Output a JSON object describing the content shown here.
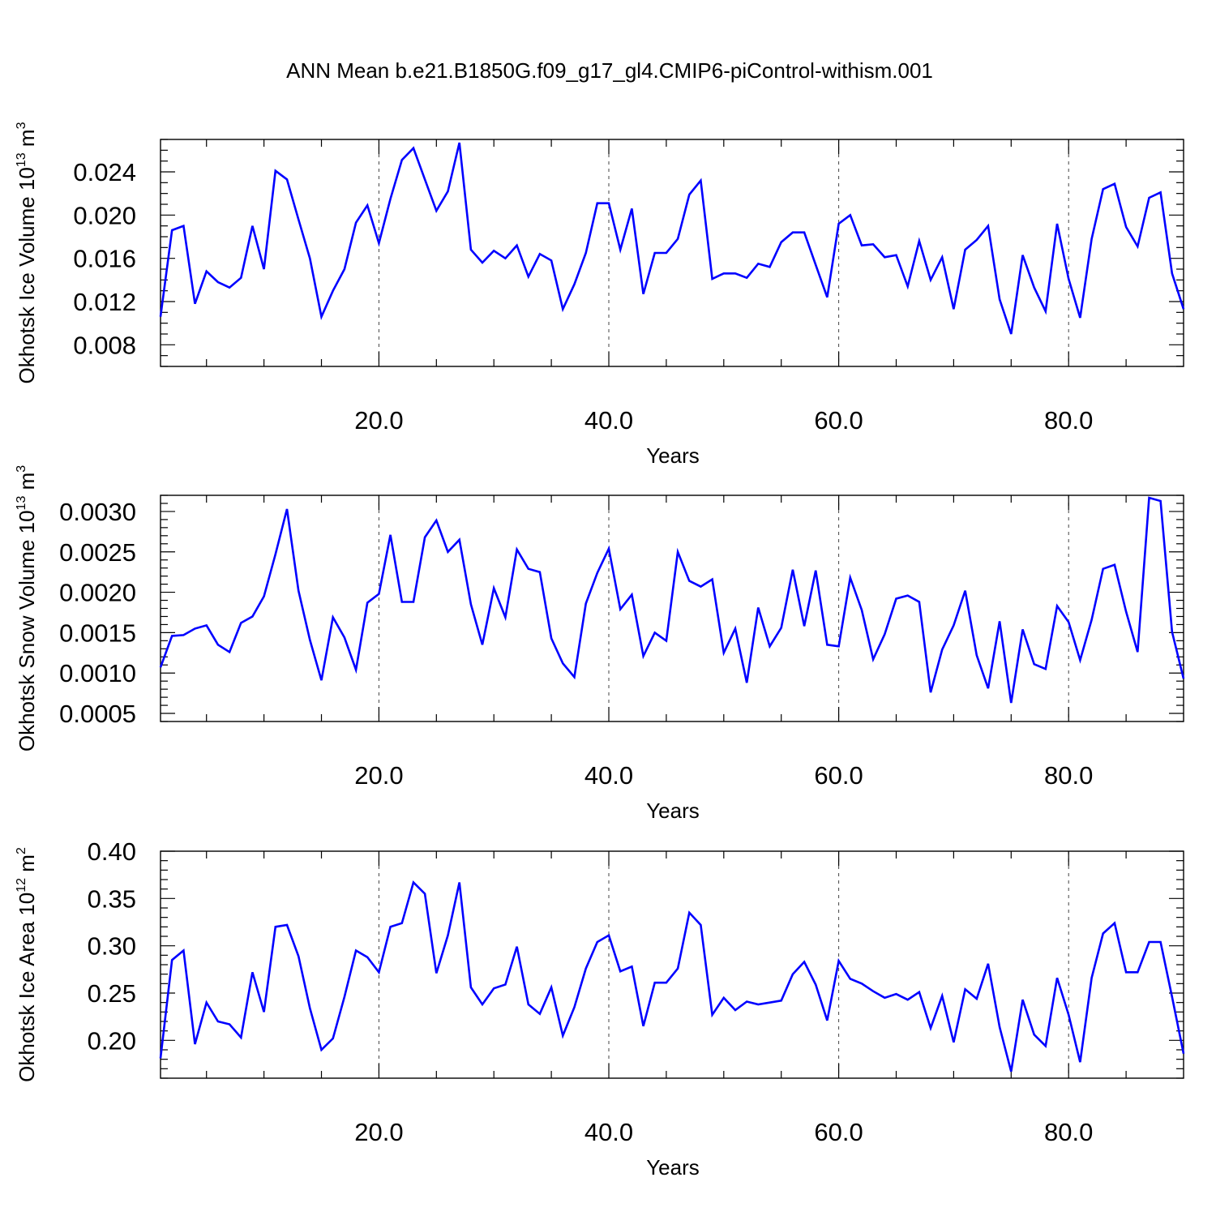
{
  "title": "ANN Mean b.e21.B1850G.f09_g17_gl4.CMIP6-piControl-withism.001",
  "line_color": "#0000ff",
  "chart_data": [
    {
      "type": "line",
      "xlabel": "Years",
      "ylabel": "Okhotsk Ice Volume 10",
      "ylabel_sup": "13",
      "ylabel_unit": "m",
      "ylabel_unit_sup": "3",
      "xlim": [
        1,
        90
      ],
      "ylim": [
        0.006,
        0.027
      ],
      "xticks": [
        20,
        40,
        60,
        80
      ],
      "xtick_labels": [
        "20.0",
        "40.0",
        "60.0",
        "80.0"
      ],
      "yticks": [
        0.008,
        0.012,
        0.016,
        0.02,
        0.024
      ],
      "ytick_labels": [
        "0.008",
        "0.012",
        "0.016",
        "0.020",
        "0.024"
      ],
      "ytick_minor": 0.001,
      "grid": "x-dashed",
      "series": [
        {
          "x": [
            1,
            2,
            3,
            4,
            5,
            6,
            7,
            8,
            9,
            10,
            11,
            12,
            13,
            14,
            15,
            16,
            17,
            18,
            19,
            20,
            21,
            22,
            23,
            24,
            25,
            26,
            27,
            28,
            29,
            30,
            31,
            32,
            33,
            34,
            35,
            36,
            37,
            38,
            39,
            40,
            41,
            42,
            43,
            44,
            45,
            46,
            47,
            48,
            49,
            50,
            51,
            52,
            53,
            54,
            55,
            56,
            57,
            58,
            59,
            60,
            61,
            62,
            63,
            64,
            65,
            66,
            67,
            68,
            69,
            70,
            71,
            72,
            73,
            74,
            75,
            76,
            77,
            78,
            79,
            80,
            81,
            82,
            83,
            84,
            85,
            86,
            87,
            88,
            89,
            90
          ],
          "values": [
            0.0106,
            0.0186,
            0.019,
            0.0118,
            0.0148,
            0.0138,
            0.0133,
            0.0142,
            0.019,
            0.015,
            0.0241,
            0.0233,
            0.0196,
            0.016,
            0.0106,
            0.013,
            0.015,
            0.0193,
            0.0209,
            0.0174,
            0.0215,
            0.0251,
            0.0262,
            0.0233,
            0.0204,
            0.0222,
            0.0267,
            0.0168,
            0.0156,
            0.0167,
            0.016,
            0.0172,
            0.0143,
            0.0164,
            0.0158,
            0.0113,
            0.0136,
            0.0165,
            0.0211,
            0.0211,
            0.0168,
            0.0206,
            0.0127,
            0.0165,
            0.0165,
            0.0178,
            0.0219,
            0.0232,
            0.0141,
            0.0146,
            0.0146,
            0.0142,
            0.0155,
            0.0152,
            0.0175,
            0.0184,
            0.0184,
            0.0154,
            0.0124,
            0.0192,
            0.02,
            0.0172,
            0.0173,
            0.0161,
            0.0163,
            0.0134,
            0.0176,
            0.014,
            0.0161,
            0.0113,
            0.0168,
            0.0177,
            0.019,
            0.0122,
            0.009,
            0.0163,
            0.0133,
            0.0111,
            0.0192,
            0.0141,
            0.0105,
            0.0178,
            0.0224,
            0.0229,
            0.0189,
            0.0171,
            0.0216,
            0.0221,
            0.0146,
            0.0113
          ]
        }
      ]
    },
    {
      "type": "line",
      "xlabel": "Years",
      "ylabel": "Okhotsk Snow Volume 10",
      "ylabel_sup": "13",
      "ylabel_unit": "m",
      "ylabel_unit_sup": "3",
      "xlim": [
        1,
        90
      ],
      "ylim": [
        0.0004,
        0.0032
      ],
      "xticks": [
        20,
        40,
        60,
        80
      ],
      "xtick_labels": [
        "20.0",
        "40.0",
        "60.0",
        "80.0"
      ],
      "yticks": [
        0.0005,
        0.001,
        0.0015,
        0.002,
        0.0025,
        0.003
      ],
      "ytick_labels": [
        "0.0005",
        "0.0010",
        "0.0015",
        "0.0020",
        "0.0025",
        "0.0030"
      ],
      "ytick_minor": 0.0001,
      "grid": "x-dashed",
      "series": [
        {
          "x": [
            1,
            2,
            3,
            4,
            5,
            6,
            7,
            8,
            9,
            10,
            11,
            12,
            13,
            14,
            15,
            16,
            17,
            18,
            19,
            20,
            21,
            22,
            23,
            24,
            25,
            26,
            27,
            28,
            29,
            30,
            31,
            32,
            33,
            34,
            35,
            36,
            37,
            38,
            39,
            40,
            41,
            42,
            43,
            44,
            45,
            46,
            47,
            48,
            49,
            50,
            51,
            52,
            53,
            54,
            55,
            56,
            57,
            58,
            59,
            60,
            61,
            62,
            63,
            64,
            65,
            66,
            67,
            68,
            69,
            70,
            71,
            72,
            73,
            74,
            75,
            76,
            77,
            78,
            79,
            80,
            81,
            82,
            83,
            84,
            85,
            86,
            87,
            88,
            89,
            90
          ],
          "values": [
            0.00107,
            0.00146,
            0.00147,
            0.00155,
            0.00159,
            0.00135,
            0.00126,
            0.00162,
            0.0017,
            0.00195,
            0.00247,
            0.00303,
            0.00202,
            0.00141,
            0.00091,
            0.00169,
            0.00144,
            0.00104,
            0.00187,
            0.00198,
            0.00271,
            0.00188,
            0.00188,
            0.00268,
            0.00289,
            0.0025,
            0.00265,
            0.00185,
            0.00135,
            0.00205,
            0.00169,
            0.00253,
            0.00229,
            0.00225,
            0.00143,
            0.00112,
            0.00095,
            0.00186,
            0.00224,
            0.00254,
            0.00179,
            0.00197,
            0.00121,
            0.0015,
            0.0014,
            0.0025,
            0.00214,
            0.00207,
            0.00216,
            0.00125,
            0.00155,
            0.00088,
            0.00181,
            0.00133,
            0.00156,
            0.00228,
            0.00158,
            0.00227,
            0.00135,
            0.00133,
            0.00218,
            0.00178,
            0.00117,
            0.00148,
            0.00192,
            0.00196,
            0.00188,
            0.00076,
            0.00129,
            0.00159,
            0.00202,
            0.00122,
            0.00081,
            0.00164,
            0.00063,
            0.00154,
            0.00111,
            0.00105,
            0.00183,
            0.00163,
            0.00116,
            0.00166,
            0.00229,
            0.00234,
            0.00176,
            0.00126,
            0.00317,
            0.00313,
            0.00151,
            0.00093
          ]
        }
      ]
    },
    {
      "type": "line",
      "xlabel": "Years",
      "ylabel": "Okhotsk Ice Area 10",
      "ylabel_sup": "12",
      "ylabel_unit": "m",
      "ylabel_unit_sup": "2",
      "xlim": [
        1,
        90
      ],
      "ylim": [
        0.16,
        0.4
      ],
      "xticks": [
        20,
        40,
        60,
        80
      ],
      "xtick_labels": [
        "20.0",
        "40.0",
        "60.0",
        "80.0"
      ],
      "yticks": [
        0.2,
        0.25,
        0.3,
        0.35,
        0.4
      ],
      "ytick_labels": [
        "0.20",
        "0.25",
        "0.30",
        "0.35",
        "0.40"
      ],
      "ytick_minor": 0.01,
      "grid": "x-dashed",
      "series": [
        {
          "x": [
            1,
            2,
            3,
            4,
            5,
            6,
            7,
            8,
            9,
            10,
            11,
            12,
            13,
            14,
            15,
            16,
            17,
            18,
            19,
            20,
            21,
            22,
            23,
            24,
            25,
            26,
            27,
            28,
            29,
            30,
            31,
            32,
            33,
            34,
            35,
            36,
            37,
            38,
            39,
            40,
            41,
            42,
            43,
            44,
            45,
            46,
            47,
            48,
            49,
            50,
            51,
            52,
            53,
            54,
            55,
            56,
            57,
            58,
            59,
            60,
            61,
            62,
            63,
            64,
            65,
            66,
            67,
            68,
            69,
            70,
            71,
            72,
            73,
            74,
            75,
            76,
            77,
            78,
            79,
            80,
            81,
            82,
            83,
            84,
            85,
            86,
            87,
            88,
            89,
            90
          ],
          "values": [
            0.181,
            0.285,
            0.295,
            0.196,
            0.24,
            0.22,
            0.217,
            0.203,
            0.272,
            0.23,
            0.32,
            0.322,
            0.289,
            0.234,
            0.19,
            0.202,
            0.246,
            0.295,
            0.288,
            0.272,
            0.32,
            0.324,
            0.367,
            0.355,
            0.271,
            0.311,
            0.367,
            0.256,
            0.238,
            0.255,
            0.259,
            0.299,
            0.238,
            0.228,
            0.256,
            0.205,
            0.235,
            0.276,
            0.304,
            0.311,
            0.273,
            0.278,
            0.215,
            0.261,
            0.261,
            0.276,
            0.335,
            0.322,
            0.227,
            0.245,
            0.232,
            0.241,
            0.238,
            0.24,
            0.242,
            0.27,
            0.283,
            0.259,
            0.221,
            0.284,
            0.265,
            0.26,
            0.252,
            0.245,
            0.249,
            0.243,
            0.251,
            0.213,
            0.247,
            0.198,
            0.254,
            0.244,
            0.281,
            0.214,
            0.167,
            0.243,
            0.206,
            0.194,
            0.266,
            0.227,
            0.177,
            0.266,
            0.313,
            0.324,
            0.272,
            0.272,
            0.304,
            0.304,
            0.246,
            0.186
          ]
        }
      ]
    }
  ]
}
